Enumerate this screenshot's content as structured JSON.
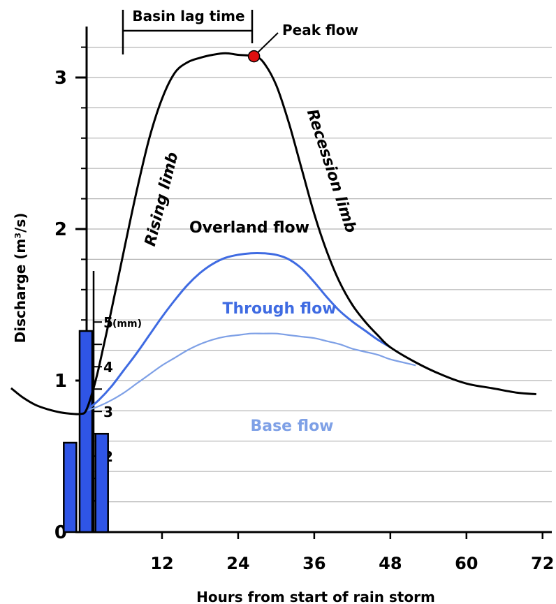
{
  "chart_data": {
    "type": "line",
    "xlabel": "Hours from start of rain storm",
    "ylabel": "Discharge (m³/s)",
    "x_ticks": [
      "12",
      "24",
      "36",
      "48",
      "60",
      "72"
    ],
    "y_ticks": [
      "0",
      "1",
      "2",
      "3"
    ],
    "xlim": [
      -12,
      74
    ],
    "ylim": [
      0,
      3.5
    ],
    "grid": true,
    "series": [
      {
        "name": "Overland flow",
        "color": "#000000",
        "x": [
          -11.8,
          -10,
          -8,
          -6,
          -4,
          -2,
          -0.8,
          0,
          1,
          2,
          4,
          6,
          8,
          10,
          12,
          14,
          16,
          18,
          20,
          22,
          24,
          26.5,
          28,
          30,
          32,
          34,
          36,
          38,
          40,
          42,
          44,
          46,
          48,
          52,
          56,
          60,
          64,
          68,
          71
        ],
        "y": [
          0.95,
          0.89,
          0.84,
          0.81,
          0.79,
          0.78,
          0.78,
          0.8,
          0.92,
          1.08,
          1.46,
          1.86,
          2.25,
          2.6,
          2.86,
          3.03,
          3.1,
          3.13,
          3.15,
          3.16,
          3.15,
          3.14,
          3.1,
          2.95,
          2.7,
          2.4,
          2.1,
          1.85,
          1.65,
          1.5,
          1.39,
          1.3,
          1.22,
          1.12,
          1.04,
          0.98,
          0.95,
          0.92,
          0.91
        ]
      },
      {
        "name": "Through flow",
        "color": "#3f6be2",
        "x": [
          0,
          2,
          4,
          6,
          8,
          10,
          12,
          14,
          16,
          18,
          20,
          22,
          24,
          26,
          28,
          30,
          32,
          34,
          36,
          38,
          40,
          42,
          44,
          46,
          48
        ],
        "y": [
          0.8,
          0.87,
          0.96,
          1.07,
          1.18,
          1.3,
          1.42,
          1.53,
          1.63,
          1.71,
          1.77,
          1.81,
          1.83,
          1.84,
          1.84,
          1.83,
          1.8,
          1.74,
          1.65,
          1.55,
          1.46,
          1.39,
          1.33,
          1.27,
          1.22
        ]
      },
      {
        "name": "Base flow",
        "color": "#7ea0e6",
        "x": [
          0,
          2,
          4,
          6,
          8,
          10,
          12,
          14,
          16,
          18,
          20,
          22,
          24,
          26,
          28,
          30,
          32,
          34,
          36,
          38,
          40,
          42,
          44,
          46,
          48,
          50,
          52
        ],
        "y": [
          0.8,
          0.83,
          0.87,
          0.92,
          0.98,
          1.04,
          1.1,
          1.15,
          1.2,
          1.24,
          1.27,
          1.29,
          1.3,
          1.31,
          1.31,
          1.31,
          1.3,
          1.29,
          1.28,
          1.26,
          1.24,
          1.21,
          1.19,
          1.17,
          1.14,
          1.12,
          1.1
        ]
      }
    ],
    "rainfall": {
      "color": "#2f55e6",
      "unit": "(mm)",
      "ticks": [
        "2",
        "3",
        "4",
        "5"
      ],
      "bars": [
        {
          "x": -2.5,
          "value": 2.3
        },
        {
          "x": 0.0,
          "value": 4.8
        },
        {
          "x": 2.5,
          "value": 2.5
        }
      ]
    },
    "annotations": {
      "basin_lag_time": "Basin lag time",
      "peak_flow": "Peak flow",
      "rising_limb": "Rising limb",
      "recession_limb": "Recession limb"
    },
    "peak_point": {
      "x": 26.5,
      "y": 3.14,
      "color": "#e01010"
    }
  }
}
